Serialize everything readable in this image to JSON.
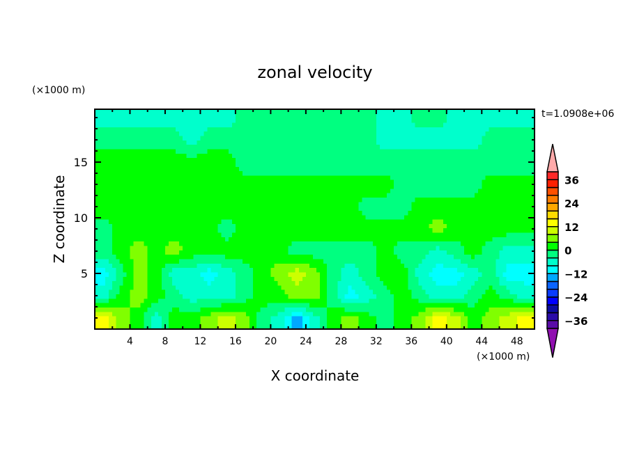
{
  "chart_data": {
    "type": "heatmap",
    "title": "zonal velocity",
    "xlabel": "X coordinate",
    "ylabel": "Z coordinate",
    "x_unit": "(×1000 m)",
    "y_unit": "(×1000 m)",
    "annotation": "t=1.0908e+06",
    "xlim": [
      0,
      50
    ],
    "ylim": [
      0,
      19.75
    ],
    "x_ticks": [
      4,
      8,
      12,
      16,
      20,
      24,
      28,
      32,
      36,
      40,
      44,
      48
    ],
    "y_ticks": [
      5,
      10,
      15
    ],
    "x_centers": [
      1,
      3,
      5,
      7,
      9,
      11,
      13,
      15,
      17,
      19,
      21,
      23,
      25,
      27,
      29,
      31,
      33,
      35,
      37,
      39,
      41,
      43,
      45,
      47,
      49
    ],
    "z_centers": [
      19,
      17,
      15,
      13,
      11,
      9,
      7,
      5,
      3,
      1
    ],
    "values": [
      [
        -6,
        -6,
        -6,
        -6,
        -6,
        -6,
        -6,
        -6,
        -2,
        -2,
        -2,
        -2,
        -2,
        -2,
        -2,
        -2,
        -6,
        -6,
        -2,
        -2,
        -6,
        -6,
        -6,
        -6,
        -6
      ],
      [
        -2,
        -2,
        -2,
        -2,
        -2,
        -6,
        -2,
        -2,
        -2,
        -2,
        -2,
        -2,
        -2,
        -2,
        -2,
        -2,
        -6,
        -6,
        -6,
        -6,
        -6,
        -6,
        -2,
        -2,
        -2
      ],
      [
        2,
        2,
        2,
        2,
        2,
        2,
        2,
        2,
        -2,
        -2,
        -2,
        -2,
        -2,
        -2,
        -2,
        -2,
        -2,
        -2,
        -2,
        -2,
        -2,
        -2,
        -2,
        -2,
        -2
      ],
      [
        2,
        2,
        2,
        2,
        2,
        2,
        2,
        2,
        2,
        2,
        2,
        2,
        2,
        2,
        2,
        2,
        2,
        -2,
        -2,
        -2,
        -2,
        -2,
        2,
        2,
        2
      ],
      [
        2,
        2,
        2,
        2,
        2,
        2,
        2,
        2,
        2,
        2,
        2,
        2,
        2,
        2,
        2,
        -2,
        -2,
        -2,
        2,
        2,
        2,
        2,
        2,
        2,
        2
      ],
      [
        -2,
        2,
        2,
        2,
        2,
        2,
        2,
        -2,
        2,
        2,
        2,
        2,
        2,
        2,
        2,
        2,
        2,
        2,
        2,
        6,
        2,
        2,
        2,
        2,
        2
      ],
      [
        -2,
        2,
        6,
        2,
        6,
        2,
        2,
        2,
        2,
        2,
        2,
        -2,
        -2,
        -2,
        -2,
        -2,
        2,
        -2,
        -2,
        -6,
        -2,
        2,
        -2,
        -6,
        -6
      ],
      [
        -10,
        -2,
        6,
        2,
        -6,
        -6,
        -10,
        -6,
        -2,
        2,
        6,
        10,
        6,
        -2,
        -6,
        -2,
        2,
        2,
        -6,
        -10,
        -10,
        -6,
        -2,
        -10,
        -10
      ],
      [
        -6,
        2,
        6,
        2,
        -2,
        -6,
        -6,
        -6,
        -2,
        2,
        2,
        6,
        6,
        -2,
        -10,
        -6,
        -2,
        2,
        -2,
        -6,
        -6,
        -2,
        2,
        -2,
        -6
      ],
      [
        14,
        6,
        2,
        -6,
        2,
        2,
        6,
        10,
        6,
        -2,
        -6,
        -14,
        -6,
        2,
        6,
        2,
        -2,
        2,
        6,
        14,
        10,
        2,
        6,
        10,
        14
      ]
    ],
    "colorbar": {
      "levels": [
        -40,
        -36,
        -32,
        -28,
        -24,
        -20,
        -16,
        -12,
        -8,
        -4,
        0,
        4,
        8,
        12,
        16,
        20,
        24,
        28,
        32,
        36,
        40
      ],
      "colors": [
        "#5a0ca8",
        "#2a0ca8",
        "#0c0ca0",
        "#0000ff",
        "#0a3cff",
        "#0a64ff",
        "#00a8ff",
        "#00ffff",
        "#00ffcc",
        "#00ff80",
        "#00ff00",
        "#80ff00",
        "#ccff00",
        "#ffff00",
        "#ffdc00",
        "#ffa800",
        "#ff7c00",
        "#ff5000",
        "#ff2000",
        "#ff2828"
      ],
      "over_color": "#ffaaaa",
      "under_color": "#9010b0",
      "tick_labels": [
        "36",
        "24",
        "12",
        "0",
        "-12",
        "-24",
        "-36"
      ],
      "tick_values": [
        36,
        24,
        12,
        0,
        -12,
        -24,
        -36
      ]
    }
  }
}
